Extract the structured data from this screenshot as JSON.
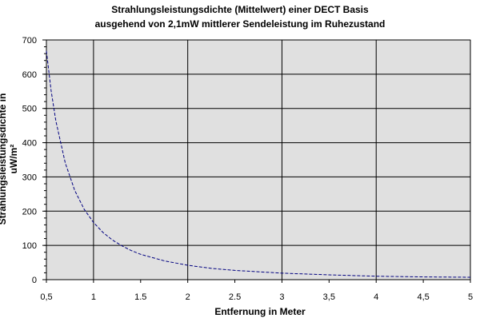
{
  "chart_data": {
    "type": "line",
    "title": "Strahlungsleistungsdichte (Mittelwert) einer DECT Basis",
    "subtitle": "ausgehend von 2,1mW mittlerer Sendeleistung im Ruhezustand",
    "xlabel": "Entfernung in Meter",
    "ylabel": "Strahlungsleistungsdichte in uW/m²",
    "xlim": [
      0.5,
      5
    ],
    "ylim": [
      0,
      700
    ],
    "x_ticks": [
      0.5,
      1,
      1.5,
      2,
      2.5,
      3,
      3.5,
      4,
      4.5,
      5
    ],
    "x_tick_labels": [
      "0,5",
      "1",
      "1.5",
      "2",
      "2.5",
      "3",
      "3,5",
      "4",
      "4,5",
      "5"
    ],
    "y_ticks": [
      0,
      100,
      200,
      300,
      400,
      500,
      600,
      700
    ],
    "y_tick_labels": [
      "0",
      "100",
      "200",
      "300",
      "400",
      "500",
      "600",
      "700"
    ],
    "grid": true,
    "series_color": "#000080",
    "plot_bg": "#e0e0e0",
    "series": [
      {
        "x": [
          0.5,
          0.55,
          0.6,
          0.7,
          0.8,
          0.9,
          1.0,
          1.1,
          1.2,
          1.3,
          1.4,
          1.5,
          1.75,
          2.0,
          2.25,
          2.5,
          3.0,
          3.5,
          4.0,
          4.5,
          5.0
        ],
        "values": [
          668,
          552,
          464,
          341,
          261,
          206,
          167,
          138,
          116,
          99,
          85,
          74,
          55,
          42,
          33,
          27,
          19,
          14,
          10,
          8,
          7
        ]
      }
    ]
  }
}
